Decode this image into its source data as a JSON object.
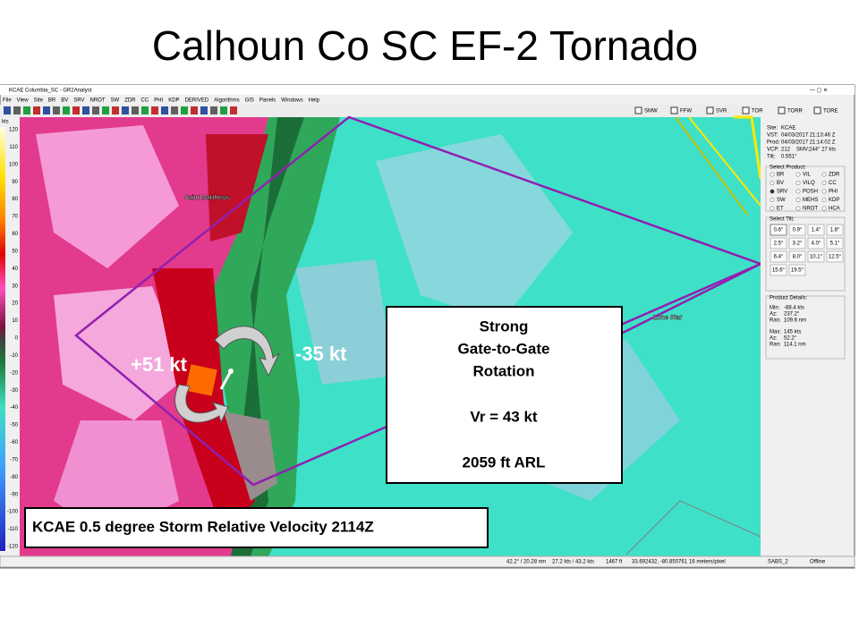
{
  "slide": {
    "title": "Calhoun Co SC EF-2 Tornado",
    "caption": "KCAE 0.5 degree Storm Relative Velocity  2114Z"
  },
  "window": {
    "title": "KCAE Columbia_SC - GR2Analyst",
    "menu": [
      "File",
      "View",
      "Site",
      "BR",
      "BV",
      "SRV",
      "NROT",
      "SW",
      "ZDR",
      "CC",
      "PHI",
      "KDP",
      "DERIVED",
      "Algorithms",
      "GIS",
      "Panels",
      "Windows",
      "Help"
    ],
    "warnings": [
      "SMW",
      "FFW",
      "SVR",
      "TOR",
      "TORR",
      "TORE"
    ]
  },
  "info": [
    {
      "label": "Site:",
      "value": "KCAE"
    },
    {
      "label": "VST:",
      "value": "04/03/2017 21:13:46 Z"
    },
    {
      "label": "Prod:",
      "value": "04/03/2017 21:14:02 Z"
    },
    {
      "label": "VCP:",
      "value": "212"
    },
    {
      "label": "SMV:",
      "value": "244° 27 kts"
    },
    {
      "label": "Tilt:",
      "value": "0.551°"
    }
  ],
  "product_panel": {
    "heading": "Select Product:",
    "options": [
      "BR",
      "VIL",
      "ZDR",
      "BV",
      "VILQ",
      "CC",
      "SRV",
      "POSH",
      "PHI",
      "SW",
      "MEHS",
      "KDP",
      "ET",
      "NROT",
      "HCA"
    ]
  },
  "tilt_panel": {
    "heading": "Select Tilt:",
    "options": [
      "0.6°",
      "0.9°",
      "1.4°",
      "1.8°",
      "2.5°",
      "3.2°",
      "4.0°",
      "5.1°",
      "6.4°",
      "8.0°",
      "10.1°",
      "12.5°",
      "15.6°",
      "19.5°"
    ]
  },
  "details": {
    "heading": "Product Details:",
    "rows": [
      {
        "label": "Min:",
        "value": "-88.4 kts"
      },
      {
        "label": "Az:",
        "value": "237.2°"
      },
      {
        "label": "Ran:",
        "value": "109.6 nm"
      },
      {
        "label": "Max:",
        "value": "145 kts"
      },
      {
        "label": "Az:",
        "value": "52.2°"
      },
      {
        "label": "Ran:",
        "value": "114.1 nm"
      }
    ]
  },
  "status_bar": [
    "42.2° / 20.28 nm",
    "27.2 kts / 43.2 kts",
    "1467 ft",
    "33.692432, -80.850761",
    "16 meters/pixel",
    "SABS_2",
    "Offline"
  ],
  "map": {
    "places": [
      "Saint Matthews",
      "Lone Star"
    ],
    "inbound": "+51 kt",
    "outbound": "-35 kt",
    "callout": [
      "Strong",
      "Gate-to-Gate",
      "Rotation",
      "Vr = 43 kt",
      "2059 ft ARL"
    ]
  },
  "color_scale": {
    "unit": "kts",
    "labels": [
      120,
      110,
      100,
      90,
      80,
      70,
      60,
      50,
      40,
      30,
      20,
      10,
      0,
      -10,
      -20,
      -30,
      -40,
      -50,
      -60,
      -70,
      -80,
      -90,
      -100,
      -110,
      -120
    ]
  }
}
